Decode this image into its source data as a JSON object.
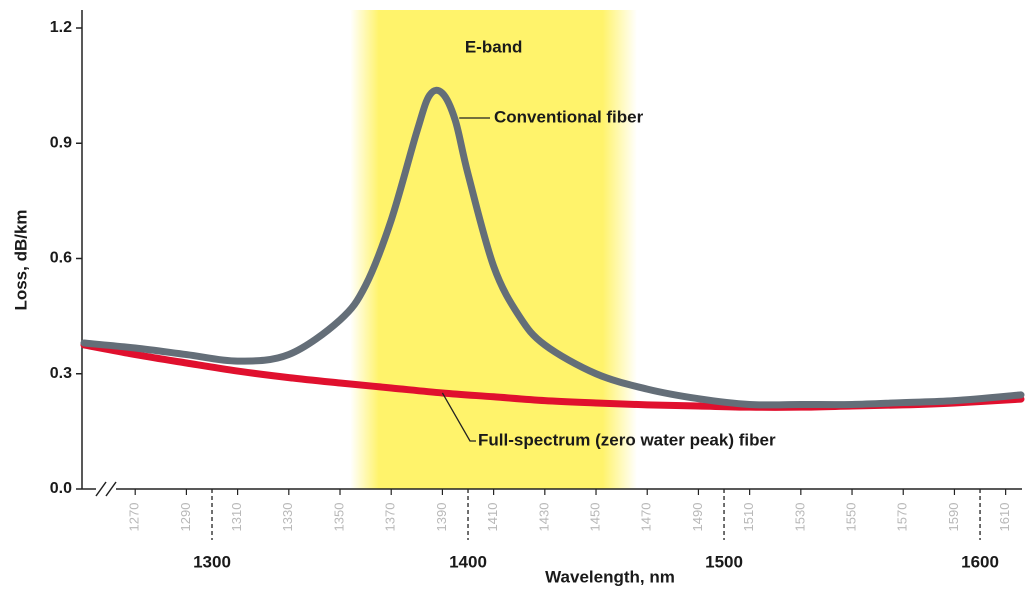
{
  "chart_data": {
    "type": "line",
    "xlabel": "Wavelength, nm",
    "ylabel": "Loss, dB/km",
    "xlim": [
      1250,
      1616
    ],
    "ylim": [
      0,
      1.2
    ],
    "yticks": [
      {
        "value": 0,
        "label": "0.0"
      },
      0.3,
      0.6,
      0.9,
      1.2
    ],
    "xticks": [
      1270,
      1290,
      1310,
      1330,
      1350,
      1370,
      1390,
      1410,
      1430,
      1450,
      1470,
      1490,
      1510,
      1530,
      1550,
      1570,
      1590,
      1610
    ],
    "xticks_major": [
      1300,
      1400,
      1500,
      1600
    ],
    "band": {
      "label": "E-band",
      "range": [
        1360,
        1460
      ],
      "color": "#fff36b"
    },
    "series": [
      {
        "name": "Conventional fiber",
        "color": "#646e78",
        "x": [
          1250,
          1270,
          1290,
          1310,
          1330,
          1350,
          1360,
          1370,
          1380,
          1385,
          1390,
          1395,
          1400,
          1410,
          1420,
          1430,
          1450,
          1470,
          1490,
          1510,
          1530,
          1550,
          1570,
          1590,
          1616
        ],
        "values": [
          0.38,
          0.367,
          0.35,
          0.333,
          0.35,
          0.44,
          0.53,
          0.7,
          0.93,
          1.025,
          1.03,
          0.96,
          0.82,
          0.58,
          0.45,
          0.375,
          0.3,
          0.26,
          0.235,
          0.22,
          0.22,
          0.22,
          0.225,
          0.23,
          0.245
        ]
      },
      {
        "name": "Full-spectrum (zero water peak) fiber",
        "color": "#e0102e",
        "x": [
          1250,
          1270,
          1290,
          1310,
          1330,
          1350,
          1370,
          1390,
          1410,
          1430,
          1450,
          1470,
          1490,
          1510,
          1530,
          1550,
          1570,
          1590,
          1616
        ],
        "values": [
          0.375,
          0.35,
          0.328,
          0.307,
          0.29,
          0.276,
          0.263,
          0.25,
          0.24,
          0.23,
          0.224,
          0.219,
          0.216,
          0.213,
          0.213,
          0.216,
          0.219,
          0.224,
          0.234
        ]
      }
    ]
  }
}
